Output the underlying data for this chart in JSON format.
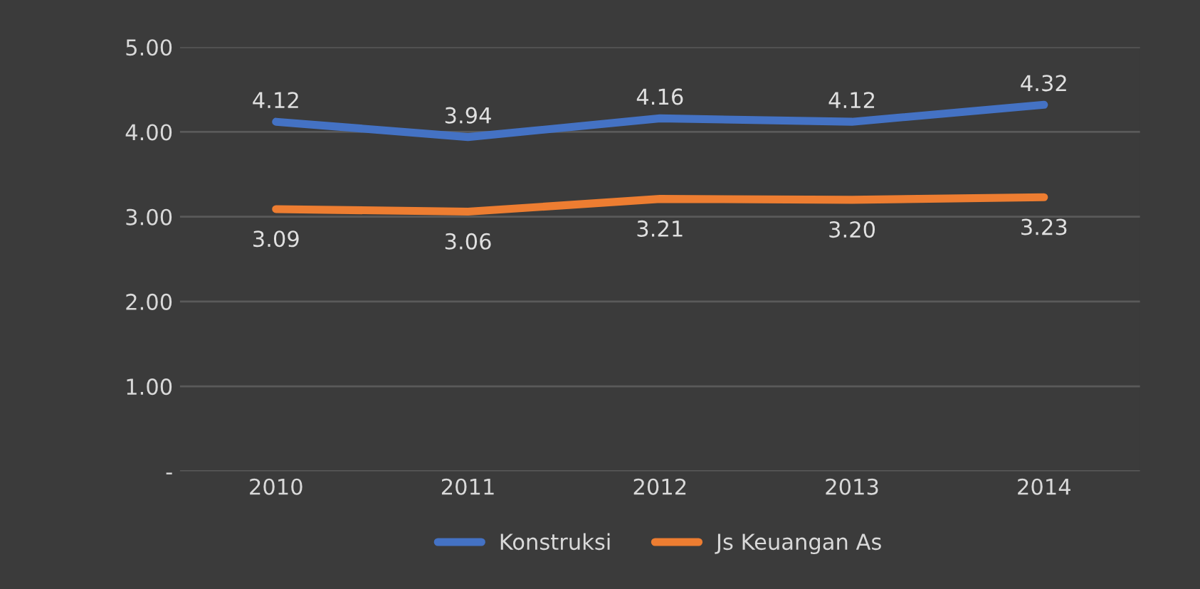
{
  "chart_data": {
    "type": "line",
    "categories": [
      "2010",
      "2011",
      "2012",
      "2013",
      "2014"
    ],
    "series": [
      {
        "name": "Konstruksi",
        "color": "#4472c4",
        "values": [
          4.12,
          3.94,
          4.16,
          4.12,
          4.32
        ],
        "value_labels": [
          "4.12",
          "3.94",
          "4.16",
          "4.12",
          "4.32"
        ]
      },
      {
        "name": "Js Keuangan As",
        "color": "#ed7d31",
        "values": [
          3.09,
          3.06,
          3.21,
          3.2,
          3.23
        ],
        "value_labels": [
          "3.09",
          "3.06",
          "3.21",
          "3.20",
          "3.23"
        ]
      }
    ],
    "ylim": [
      0,
      5
    ],
    "yticks": [
      {
        "value": 0,
        "label": "-"
      },
      {
        "value": 1,
        "label": "1.00"
      },
      {
        "value": 2,
        "label": "2.00"
      },
      {
        "value": 3,
        "label": "3.00"
      },
      {
        "value": 4,
        "label": "4.00"
      },
      {
        "value": 5,
        "label": "5.00"
      }
    ],
    "grid": "y",
    "legend": "bottom",
    "marker": "none",
    "line_style": "solid"
  }
}
